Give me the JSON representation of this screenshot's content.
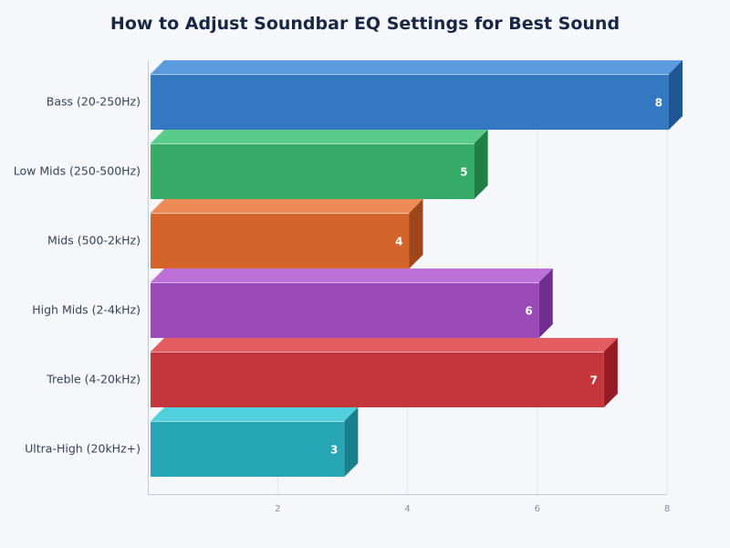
{
  "chart_data": {
    "type": "bar",
    "orientation": "horizontal",
    "style": "3d",
    "title": "How to Adjust Soundbar EQ Settings for Best Sound",
    "xlabel": "",
    "ylabel": "",
    "xlim": [
      0,
      8
    ],
    "xticks": [
      2,
      4,
      6,
      8
    ],
    "grid": true,
    "legend": "none",
    "categories": [
      "Bass (20-250Hz)",
      "Low Mids (250-500Hz)",
      "Mids (500-2kHz)",
      "High Mids (2-4kHz)",
      "Treble (4-20kHz)",
      "Ultra-High (20kHz+)"
    ],
    "values": [
      8,
      5,
      4,
      6,
      7,
      3
    ],
    "colors": [
      {
        "front": "#3478c2",
        "top": "#5a9be0",
        "side": "#1f5796"
      },
      {
        "front": "#36ab67",
        "top": "#58cc88",
        "side": "#208043"
      },
      {
        "front": "#d2642c",
        "top": "#ee8a55",
        "side": "#a0461a"
      },
      {
        "front": "#9a4bb8",
        "top": "#bd70d8",
        "side": "#722d92"
      },
      {
        "front": "#c5363c",
        "top": "#e25c62",
        "side": "#951c22"
      },
      {
        "front": "#26a5b4",
        "top": "#50cfdc",
        "side": "#187f8c"
      }
    ]
  },
  "header": {
    "title": "How to Adjust Soundbar EQ Settings for Best Sound"
  }
}
